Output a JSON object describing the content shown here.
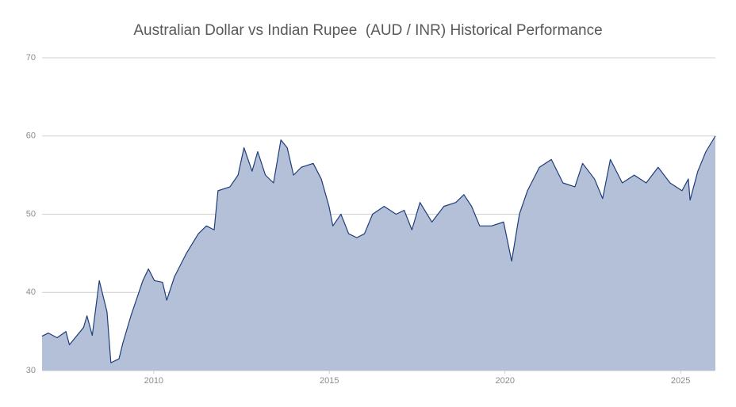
{
  "chart_data": {
    "type": "area",
    "title": "Australian Dollar vs Indian Rupee  (AUD / INR) Historical Performance",
    "line_color": "#1f3d7a",
    "fill_color": "#b3c0d8",
    "grid": true,
    "xlim": [
      2006.82,
      2025.99
    ],
    "xticks": [
      2010,
      2015,
      2020,
      2025
    ],
    "ylim": [
      30,
      70
    ],
    "yticks": [
      30,
      40,
      50,
      60,
      70
    ],
    "x": [
      2006.82,
      2007.0,
      2007.25,
      2007.5,
      2007.6,
      2008.0,
      2008.1,
      2008.25,
      2008.45,
      2008.67,
      2008.78,
      2009.01,
      2009.12,
      2009.35,
      2009.69,
      2009.85,
      2010.02,
      2010.25,
      2010.37,
      2010.59,
      2010.93,
      2011.27,
      2011.5,
      2011.72,
      2011.83,
      2012.17,
      2012.4,
      2012.57,
      2012.8,
      2012.96,
      2013.18,
      2013.41,
      2013.62,
      2013.8,
      2013.98,
      2014.2,
      2014.54,
      2014.77,
      2014.99,
      2015.1,
      2015.33,
      2015.55,
      2015.78,
      2016.0,
      2016.23,
      2016.56,
      2016.9,
      2017.13,
      2017.35,
      2017.58,
      2017.92,
      2018.26,
      2018.6,
      2018.83,
      2019.05,
      2019.28,
      2019.62,
      2019.96,
      2020.19,
      2020.41,
      2020.64,
      2020.98,
      2021.32,
      2021.65,
      2021.99,
      2022.21,
      2022.55,
      2022.78,
      2023.0,
      2023.34,
      2023.68,
      2024.02,
      2024.36,
      2024.7,
      2025.04,
      2025.22,
      2025.27,
      2025.49,
      2025.72,
      2025.99
    ],
    "values": [
      34.4,
      34.8,
      34.2,
      35.0,
      33.3,
      35.5,
      37.0,
      34.5,
      41.5,
      37.5,
      31.0,
      31.5,
      33.5,
      37.0,
      41.5,
      43.0,
      41.5,
      41.3,
      39.0,
      42.0,
      45.0,
      47.5,
      48.5,
      48.0,
      53.0,
      53.5,
      55.0,
      58.5,
      55.5,
      58.0,
      55.0,
      54.0,
      59.5,
      58.5,
      55.0,
      56.0,
      56.5,
      54.5,
      51.0,
      48.5,
      50.0,
      47.5,
      47.0,
      47.5,
      50.0,
      51.0,
      50.0,
      50.5,
      48.0,
      51.5,
      49.0,
      51.0,
      51.5,
      52.5,
      51.0,
      48.5,
      48.5,
      49.0,
      44.0,
      50.0,
      53.0,
      56.0,
      57.0,
      54.0,
      53.5,
      56.5,
      54.5,
      52.0,
      57.0,
      54.0,
      55.0,
      54.0,
      56.0,
      54.0,
      53.0,
      54.5,
      51.8,
      55.5,
      58.0,
      60.0
    ]
  }
}
